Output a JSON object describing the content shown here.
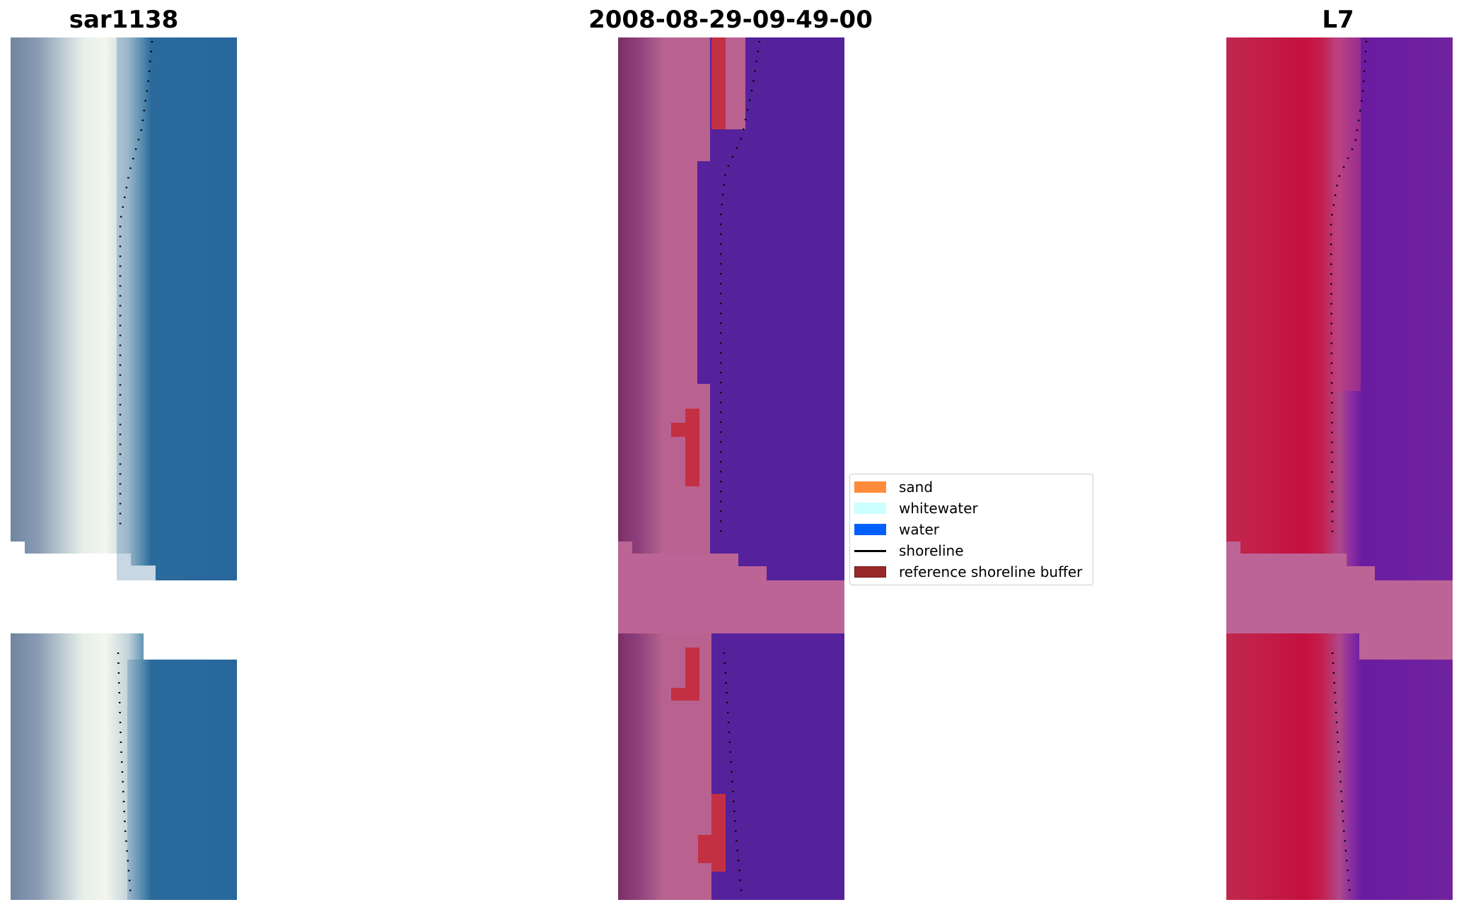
{
  "panels": [
    {
      "title": "sar1138",
      "kind": "rgb"
    },
    {
      "title": "2008-08-29-09-49-00",
      "kind": "classified"
    },
    {
      "title": "L7",
      "kind": "index"
    }
  ],
  "legend": {
    "items": [
      {
        "label": "sand",
        "color": "#ff8c3a",
        "type": "patch"
      },
      {
        "label": "whitewater",
        "color": "#ccffff",
        "type": "patch"
      },
      {
        "label": "water",
        "color": "#0060ff",
        "type": "patch"
      },
      {
        "label": "shoreline",
        "color": "#000000",
        "type": "line"
      },
      {
        "label": "reference shoreline buffer",
        "color": "#9a2a2a",
        "type": "patch"
      }
    ]
  },
  "colors": {
    "rgb_water": "#2a6aa0",
    "rgb_sand": "#eef3f3",
    "classified_land": "#8b3c7a",
    "classified_water": "#55229b",
    "classified_red": "#c33044",
    "buffer_pink": "#bd6496",
    "index_red": "#c5103e",
    "index_purple": "#6a1ba0"
  }
}
